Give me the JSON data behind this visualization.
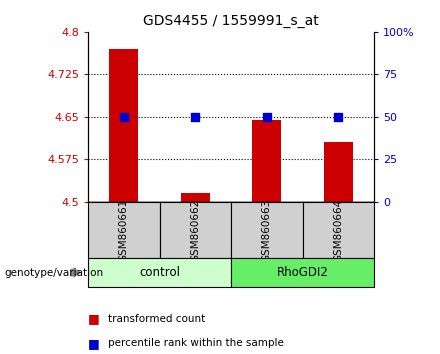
{
  "title": "GDS4455 / 1559991_s_at",
  "samples": [
    "GSM860661",
    "GSM860662",
    "GSM860663",
    "GSM860664"
  ],
  "groups": [
    "control",
    "control",
    "RhoGDI2",
    "RhoGDI2"
  ],
  "group_colors": {
    "control": "#ccffcc",
    "RhoGDI2": "#66ee66"
  },
  "bar_values": [
    4.77,
    4.515,
    4.645,
    4.605
  ],
  "percentile_values": [
    50,
    50,
    50,
    50
  ],
  "ylim_left": [
    4.5,
    4.8
  ],
  "ylim_right": [
    0,
    100
  ],
  "yticks_left": [
    4.5,
    4.575,
    4.65,
    4.725,
    4.8
  ],
  "yticks_right": [
    0,
    25,
    50,
    75,
    100
  ],
  "ytick_labels_left": [
    "4.5",
    "4.575",
    "4.65",
    "4.725",
    "4.8"
  ],
  "ytick_labels_right": [
    "0",
    "25",
    "50",
    "75",
    "100%"
  ],
  "bar_color": "#cc0000",
  "dot_color": "#0000cc",
  "sample_box_color": "#d0d0d0",
  "bar_width": 0.4,
  "dot_size": 35,
  "legend_red_label": "transformed count",
  "legend_blue_label": "percentile rank within the sample",
  "genotype_label": "genotype/variation",
  "gridline_values": [
    4.725,
    4.65,
    4.575
  ]
}
